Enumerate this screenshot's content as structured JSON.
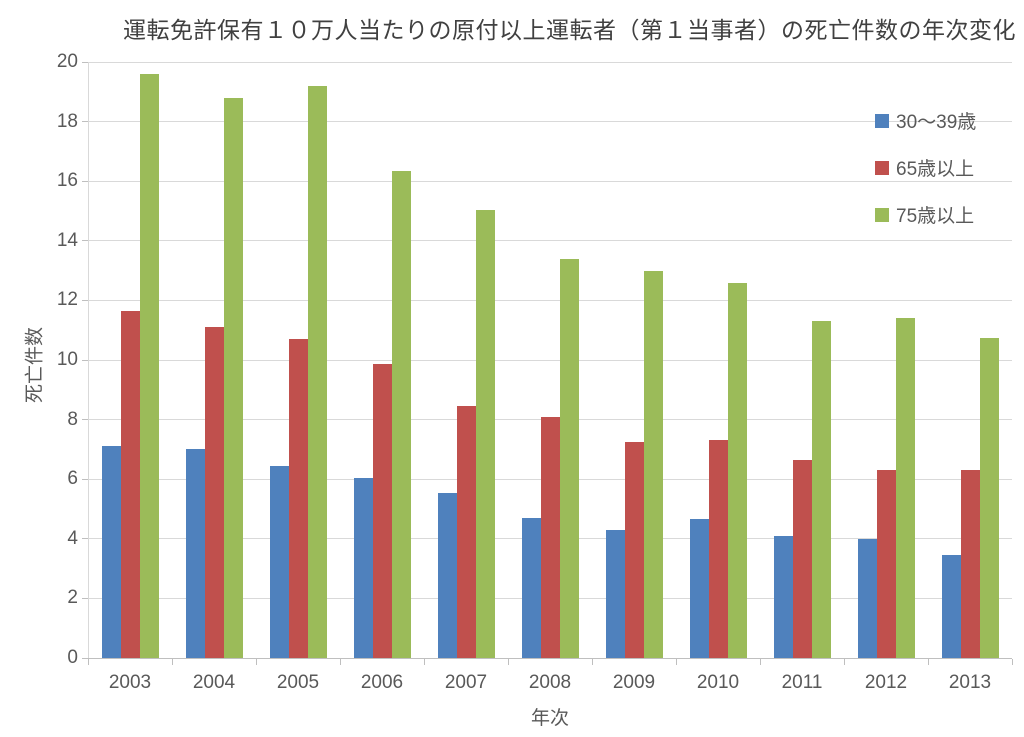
{
  "chart_data": {
    "type": "bar",
    "title": "運転免許保有１０万人当たりの原付以上運転者（第１当事者）の死亡件数の年次変化",
    "xlabel": "年次",
    "ylabel": "死亡件数",
    "categories": [
      "2003",
      "2004",
      "2005",
      "2006",
      "2007",
      "2008",
      "2009",
      "2010",
      "2011",
      "2012",
      "2013"
    ],
    "series": [
      {
        "name": "30〜39歳",
        "color": "#4F81BD",
        "values": [
          7.1,
          7.0,
          6.45,
          6.05,
          5.55,
          4.7,
          4.3,
          4.65,
          4.1,
          4.0,
          3.45
        ]
      },
      {
        "name": "65歳以上",
        "color": "#C0504D",
        "values": [
          11.65,
          11.1,
          10.7,
          9.85,
          8.45,
          8.1,
          7.25,
          7.3,
          6.65,
          6.3,
          6.3
        ]
      },
      {
        "name": "75歳以上",
        "color": "#9BBB59",
        "values": [
          19.6,
          18.8,
          19.2,
          16.35,
          15.05,
          13.4,
          13.0,
          12.6,
          11.3,
          11.4,
          10.75
        ]
      }
    ],
    "ylim": [
      0,
      20
    ],
    "ytick_step": 2,
    "grid": true,
    "legend_position": "right-top-inside",
    "colors": {
      "grid": "#D9D9D9",
      "axis": "#BFBFBF",
      "text": "#595959",
      "title": "#404040",
      "background": "#FFFFFF"
    }
  }
}
